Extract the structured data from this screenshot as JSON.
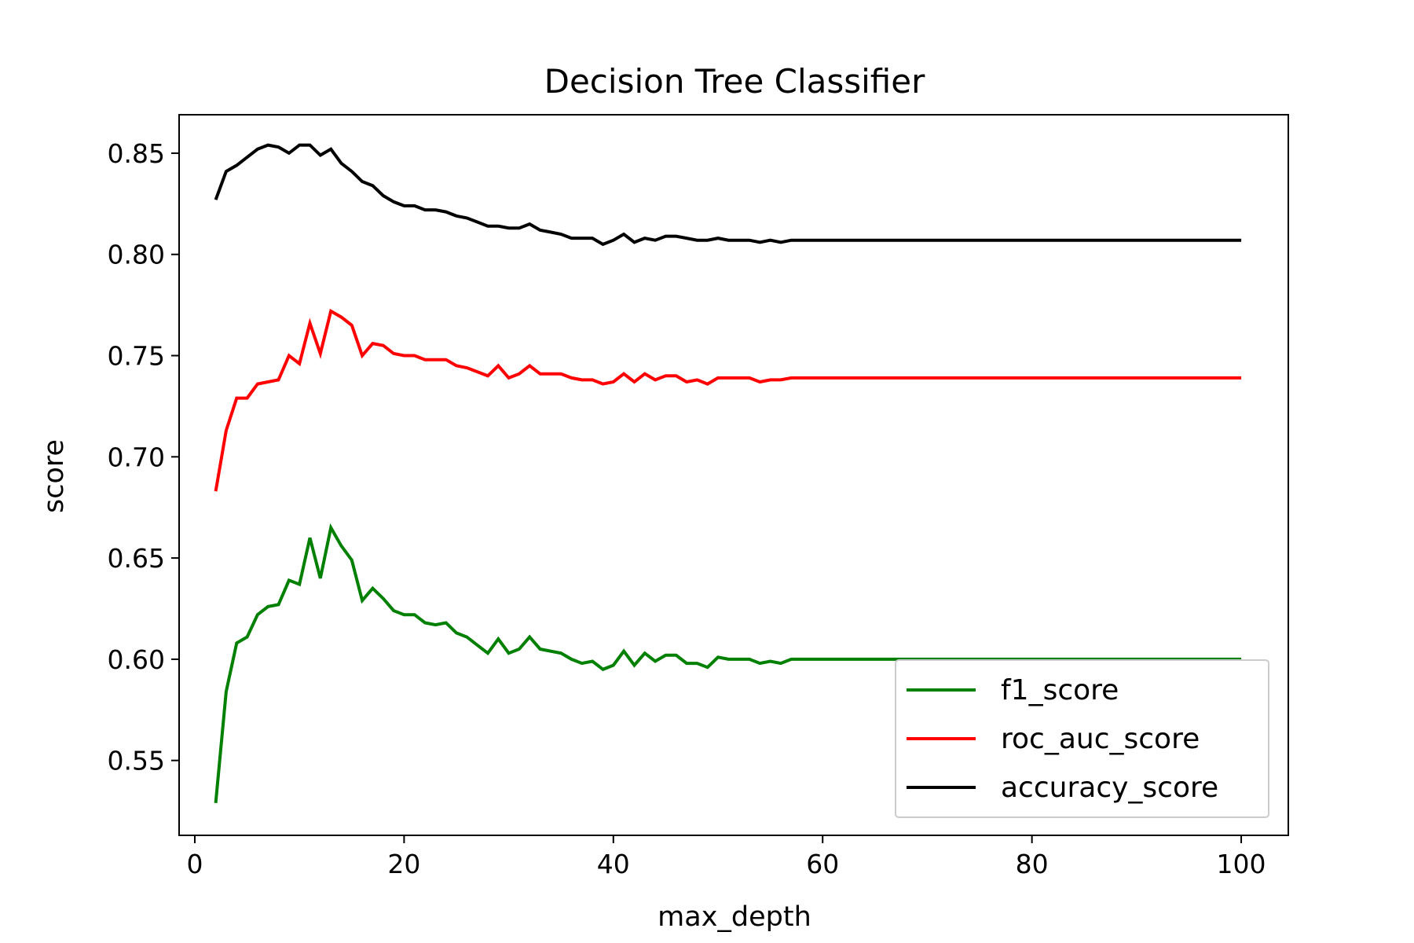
{
  "chart_data": {
    "type": "line",
    "title": "Decision Tree Classifier",
    "xlabel": "max_depth",
    "ylabel": "score",
    "xlim": [
      -1.5,
      104.5
    ],
    "ylim": [
      0.513,
      0.869
    ],
    "xticks": [
      0,
      20,
      40,
      60,
      80,
      100
    ],
    "xtick_labels": [
      "0",
      "20",
      "40",
      "60",
      "80",
      "100"
    ],
    "yticks": [
      0.55,
      0.6,
      0.65,
      0.7,
      0.75,
      0.8,
      0.85
    ],
    "ytick_labels": [
      "0.55",
      "0.60",
      "0.65",
      "0.70",
      "0.75",
      "0.80",
      "0.85"
    ],
    "grid": false,
    "legend_position": "lower-right",
    "series": [
      {
        "name": "f1_score",
        "color": "#008000",
        "x": [
          2,
          3,
          4,
          5,
          6,
          7,
          8,
          9,
          10,
          11,
          12,
          13,
          14,
          15,
          16,
          17,
          18,
          19,
          20,
          21,
          22,
          23,
          24,
          25,
          26,
          27,
          28,
          29,
          30,
          31,
          32,
          33,
          34,
          35,
          36,
          37,
          38,
          39,
          40,
          41,
          42,
          43,
          44,
          45,
          46,
          47,
          48,
          49,
          50,
          51,
          52,
          53,
          54,
          55,
          56,
          57,
          100
        ],
        "y": [
          0.529,
          0.584,
          0.608,
          0.611,
          0.622,
          0.626,
          0.627,
          0.639,
          0.637,
          0.66,
          0.64,
          0.665,
          0.656,
          0.649,
          0.629,
          0.635,
          0.63,
          0.624,
          0.622,
          0.622,
          0.618,
          0.617,
          0.618,
          0.613,
          0.611,
          0.607,
          0.603,
          0.61,
          0.603,
          0.605,
          0.611,
          0.605,
          0.604,
          0.603,
          0.6,
          0.598,
          0.599,
          0.595,
          0.597,
          0.604,
          0.597,
          0.603,
          0.599,
          0.602,
          0.602,
          0.598,
          0.598,
          0.596,
          0.601,
          0.6,
          0.6,
          0.6,
          0.598,
          0.599,
          0.598,
          0.6,
          0.6
        ]
      },
      {
        "name": "roc_auc_score",
        "color": "#ff0000",
        "x": [
          2,
          3,
          4,
          5,
          6,
          7,
          8,
          9,
          10,
          11,
          12,
          13,
          14,
          15,
          16,
          17,
          18,
          19,
          20,
          21,
          22,
          23,
          24,
          25,
          26,
          27,
          28,
          29,
          30,
          31,
          32,
          33,
          34,
          35,
          36,
          37,
          38,
          39,
          40,
          41,
          42,
          43,
          44,
          45,
          46,
          47,
          48,
          49,
          50,
          51,
          52,
          53,
          54,
          55,
          56,
          57,
          100
        ],
        "y": [
          0.683,
          0.713,
          0.729,
          0.729,
          0.736,
          0.737,
          0.738,
          0.75,
          0.746,
          0.766,
          0.751,
          0.772,
          0.769,
          0.765,
          0.75,
          0.756,
          0.755,
          0.751,
          0.75,
          0.75,
          0.748,
          0.748,
          0.748,
          0.745,
          0.744,
          0.742,
          0.74,
          0.745,
          0.739,
          0.741,
          0.745,
          0.741,
          0.741,
          0.741,
          0.739,
          0.738,
          0.738,
          0.736,
          0.737,
          0.741,
          0.737,
          0.741,
          0.738,
          0.74,
          0.74,
          0.737,
          0.738,
          0.736,
          0.739,
          0.739,
          0.739,
          0.739,
          0.737,
          0.738,
          0.738,
          0.739,
          0.739
        ]
      },
      {
        "name": "accuracy_score",
        "color": "#000000",
        "x": [
          2,
          3,
          4,
          5,
          6,
          7,
          8,
          9,
          10,
          11,
          12,
          13,
          14,
          15,
          16,
          17,
          18,
          19,
          20,
          21,
          22,
          23,
          24,
          25,
          26,
          27,
          28,
          29,
          30,
          31,
          32,
          33,
          34,
          35,
          36,
          37,
          38,
          39,
          40,
          41,
          42,
          43,
          44,
          45,
          46,
          47,
          48,
          49,
          50,
          51,
          52,
          53,
          54,
          55,
          56,
          57,
          100
        ],
        "y": [
          0.827,
          0.841,
          0.844,
          0.848,
          0.852,
          0.854,
          0.853,
          0.85,
          0.854,
          0.854,
          0.849,
          0.852,
          0.845,
          0.841,
          0.836,
          0.834,
          0.829,
          0.826,
          0.824,
          0.824,
          0.822,
          0.822,
          0.821,
          0.819,
          0.818,
          0.816,
          0.814,
          0.814,
          0.813,
          0.813,
          0.815,
          0.812,
          0.811,
          0.81,
          0.808,
          0.808,
          0.808,
          0.805,
          0.807,
          0.81,
          0.806,
          0.808,
          0.807,
          0.809,
          0.809,
          0.808,
          0.807,
          0.807,
          0.808,
          0.807,
          0.807,
          0.807,
          0.806,
          0.807,
          0.806,
          0.807,
          0.807
        ]
      }
    ]
  }
}
